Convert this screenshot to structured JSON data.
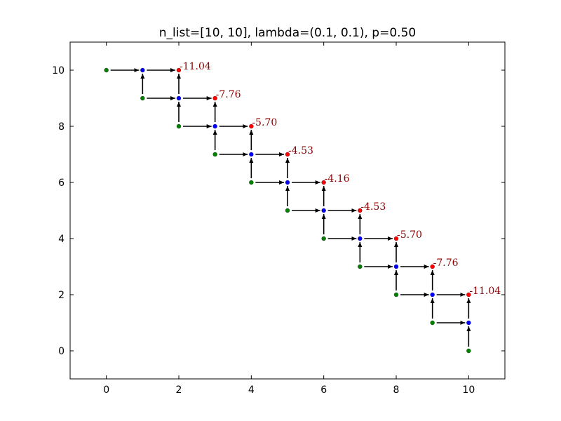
{
  "chart_data": {
    "type": "scatter",
    "title": "n_list=[10, 10], lambda=(0.1, 0.1), p=0.50",
    "xlabel": "",
    "ylabel": "",
    "xlim": [
      -1,
      11
    ],
    "ylim": [
      -1,
      11
    ],
    "xticks": [
      0,
      2,
      4,
      6,
      8,
      10
    ],
    "yticks": [
      0,
      2,
      4,
      6,
      8,
      10
    ],
    "xtick_labels": [
      "0",
      "2",
      "4",
      "6",
      "8",
      "10"
    ],
    "ytick_labels": [
      "0",
      "2",
      "4",
      "6",
      "8",
      "10"
    ],
    "grid": false,
    "legend": "none",
    "series": [
      {
        "color": "#008000",
        "points": [
          [
            0,
            10
          ],
          [
            1,
            9
          ],
          [
            2,
            8
          ],
          [
            3,
            7
          ],
          [
            4,
            6
          ],
          [
            5,
            5
          ],
          [
            6,
            4
          ],
          [
            7,
            3
          ],
          [
            8,
            2
          ],
          [
            9,
            1
          ],
          [
            10,
            0
          ]
        ]
      },
      {
        "color": "#0000ff",
        "points": [
          [
            1,
            10
          ],
          [
            2,
            9
          ],
          [
            3,
            8
          ],
          [
            4,
            7
          ],
          [
            5,
            6
          ],
          [
            6,
            5
          ],
          [
            7,
            4
          ],
          [
            8,
            3
          ],
          [
            9,
            2
          ],
          [
            10,
            1
          ]
        ]
      },
      {
        "color": "#ff0000",
        "points": [
          [
            2,
            10
          ],
          [
            3,
            9
          ],
          [
            4,
            8
          ],
          [
            5,
            7
          ],
          [
            6,
            6
          ],
          [
            7,
            5
          ],
          [
            8,
            4
          ],
          [
            9,
            3
          ],
          [
            10,
            2
          ]
        ]
      }
    ],
    "arrows": [
      [
        [
          0,
          10
        ],
        [
          1,
          10
        ]
      ],
      [
        [
          1,
          9
        ],
        [
          1,
          10
        ]
      ],
      [
        [
          1,
          10
        ],
        [
          2,
          10
        ]
      ],
      [
        [
          1,
          9
        ],
        [
          2,
          9
        ]
      ],
      [
        [
          2,
          9
        ],
        [
          2,
          10
        ]
      ],
      [
        [
          2,
          8
        ],
        [
          2,
          9
        ]
      ],
      [
        [
          2,
          9
        ],
        [
          3,
          9
        ]
      ],
      [
        [
          2,
          8
        ],
        [
          3,
          8
        ]
      ],
      [
        [
          3,
          8
        ],
        [
          3,
          9
        ]
      ],
      [
        [
          3,
          7
        ],
        [
          3,
          8
        ]
      ],
      [
        [
          3,
          8
        ],
        [
          4,
          8
        ]
      ],
      [
        [
          3,
          7
        ],
        [
          4,
          7
        ]
      ],
      [
        [
          4,
          7
        ],
        [
          4,
          8
        ]
      ],
      [
        [
          4,
          6
        ],
        [
          4,
          7
        ]
      ],
      [
        [
          4,
          7
        ],
        [
          5,
          7
        ]
      ],
      [
        [
          4,
          6
        ],
        [
          5,
          6
        ]
      ],
      [
        [
          5,
          6
        ],
        [
          5,
          7
        ]
      ],
      [
        [
          5,
          5
        ],
        [
          5,
          6
        ]
      ],
      [
        [
          5,
          6
        ],
        [
          6,
          6
        ]
      ],
      [
        [
          5,
          5
        ],
        [
          6,
          5
        ]
      ],
      [
        [
          6,
          5
        ],
        [
          6,
          6
        ]
      ],
      [
        [
          6,
          4
        ],
        [
          6,
          5
        ]
      ],
      [
        [
          6,
          5
        ],
        [
          7,
          5
        ]
      ],
      [
        [
          6,
          4
        ],
        [
          7,
          4
        ]
      ],
      [
        [
          7,
          4
        ],
        [
          7,
          5
        ]
      ],
      [
        [
          7,
          3
        ],
        [
          7,
          4
        ]
      ],
      [
        [
          7,
          4
        ],
        [
          8,
          4
        ]
      ],
      [
        [
          7,
          3
        ],
        [
          8,
          3
        ]
      ],
      [
        [
          8,
          3
        ],
        [
          8,
          4
        ]
      ],
      [
        [
          8,
          2
        ],
        [
          8,
          3
        ]
      ],
      [
        [
          8,
          3
        ],
        [
          9,
          3
        ]
      ],
      [
        [
          8,
          2
        ],
        [
          9,
          2
        ]
      ],
      [
        [
          9,
          2
        ],
        [
          9,
          3
        ]
      ],
      [
        [
          9,
          1
        ],
        [
          9,
          2
        ]
      ],
      [
        [
          9,
          2
        ],
        [
          10,
          2
        ]
      ],
      [
        [
          9,
          1
        ],
        [
          10,
          1
        ]
      ],
      [
        [
          10,
          1
        ],
        [
          10,
          2
        ]
      ],
      [
        [
          10,
          0
        ],
        [
          10,
          1
        ]
      ]
    ],
    "annotations": [
      {
        "x": 2,
        "y": 10,
        "text": "-11.04"
      },
      {
        "x": 3,
        "y": 9,
        "text": "-7.76"
      },
      {
        "x": 4,
        "y": 8,
        "text": "-5.70"
      },
      {
        "x": 5,
        "y": 7,
        "text": "-4.53"
      },
      {
        "x": 6,
        "y": 6,
        "text": "-4.16"
      },
      {
        "x": 7,
        "y": 5,
        "text": "-4.53"
      },
      {
        "x": 8,
        "y": 4,
        "text": "-5.70"
      },
      {
        "x": 9,
        "y": 3,
        "text": "-7.76"
      },
      {
        "x": 10,
        "y": 2,
        "text": "-11.04"
      }
    ],
    "annotation_color": "#8b0000",
    "arrow_color": "#000000"
  }
}
